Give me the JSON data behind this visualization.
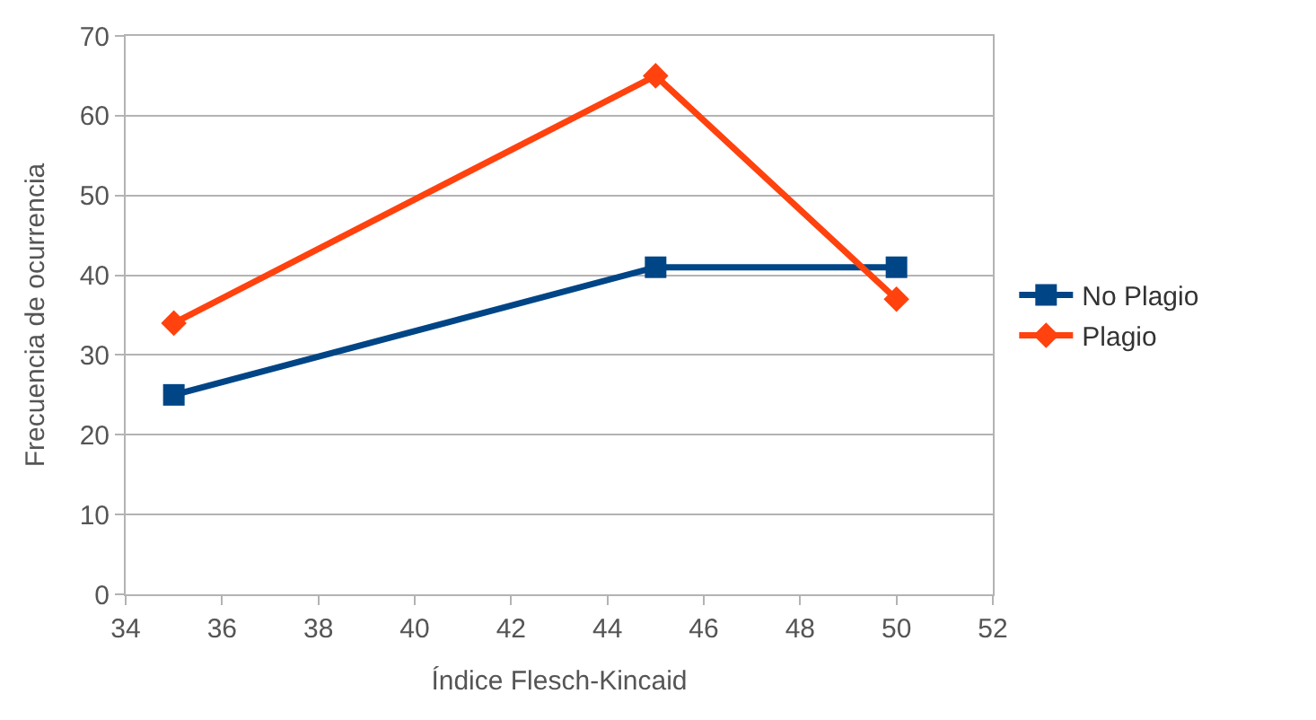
{
  "chart_data": {
    "type": "line",
    "xlabel": "Índice Flesch-Kincaid",
    "ylabel": "Frecuencia de ocurrencia",
    "xlim": [
      34,
      52
    ],
    "xticks": [
      34,
      36,
      38,
      40,
      42,
      44,
      46,
      48,
      50,
      52
    ],
    "ylim": [
      0,
      70
    ],
    "yticks": [
      0,
      10,
      20,
      30,
      40,
      50,
      60,
      70
    ],
    "grid": "y",
    "legend": "right",
    "series": [
      {
        "name": "No Plagio",
        "color": "#004586",
        "x": [
          35,
          45,
          50
        ],
        "values": [
          25,
          41,
          41
        ],
        "marker": "square"
      },
      {
        "name": "Plagio",
        "color": "#ff420e",
        "x": [
          35,
          45,
          50
        ],
        "values": [
          34,
          65,
          37
        ],
        "marker": "diamond"
      }
    ]
  }
}
